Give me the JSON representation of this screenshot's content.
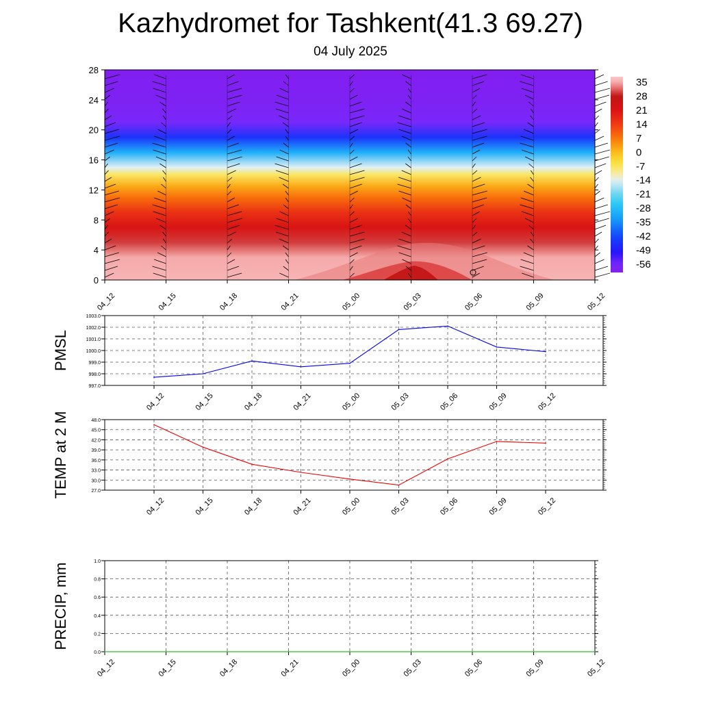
{
  "title": "Kazhydromet for Tashkent(41.3 69.27)",
  "subtitle": "04 July 2025",
  "chart_data": [
    {
      "type": "heatmap",
      "name": "upper-air temperature cross-section",
      "x_ticks": [
        "04_12",
        "04_15",
        "04_18",
        "04_21",
        "05_00",
        "05_03",
        "05_06",
        "05_09",
        "05_12"
      ],
      "y_ticks": [
        0,
        4,
        8,
        12,
        16,
        20,
        24,
        28
      ],
      "ylim": [
        0,
        28
      ],
      "colorbar": {
        "labels": [
          "35",
          "28",
          "21",
          "14",
          "7",
          "0",
          "-7",
          "-14",
          "-21",
          "-28",
          "-35",
          "-42",
          "-49",
          "-56"
        ],
        "range": [
          -60,
          38
        ]
      },
      "temperature_profile": [
        {
          "level": 0,
          "value": 36
        },
        {
          "level": 3,
          "value": 35
        },
        {
          "level": 5,
          "value": 30
        },
        {
          "level": 7,
          "value": 22
        },
        {
          "level": 9,
          "value": 16
        },
        {
          "level": 11,
          "value": 8
        },
        {
          "level": 12.5,
          "value": 2
        },
        {
          "level": 14,
          "value": -7
        },
        {
          "level": 15,
          "value": -14
        },
        {
          "level": 17,
          "value": -30
        },
        {
          "level": 19,
          "value": -45
        },
        {
          "level": 21,
          "value": -56
        },
        {
          "level": 23,
          "value": -58
        },
        {
          "level": 28,
          "value": -60
        }
      ],
      "wind_barb_columns": [
        "04_12",
        "04_15",
        "04_18",
        "04_21",
        "05_00",
        "05_03",
        "05_06",
        "05_09",
        "05_12"
      ]
    },
    {
      "type": "line",
      "name": "PMSL",
      "ylabel": "PMSL",
      "categories": [
        "04_12",
        "04_15",
        "04_18",
        "04_21",
        "05_00",
        "05_03",
        "05_06",
        "05_09",
        "05_12"
      ],
      "values": [
        997.7,
        998.0,
        999.1,
        998.6,
        998.9,
        1001.8,
        1002.1,
        1000.3,
        999.9
      ],
      "ylim": [
        997.0,
        1003.0
      ],
      "yticks": [
        "997.0",
        "998.0",
        "999.0",
        "1000.0",
        "1001.0",
        "1002.0",
        "1003.0"
      ],
      "color": "#0000ee",
      "grid": true
    },
    {
      "type": "line",
      "name": "TEMP at 2 M",
      "ylabel": "TEMP at 2 M",
      "categories": [
        "04_12",
        "04_15",
        "04_18",
        "04_21",
        "05_00",
        "05_03",
        "05_06",
        "05_09",
        "05_12"
      ],
      "values": [
        46.5,
        39.8,
        34.7,
        32.3,
        30.3,
        28.5,
        36.3,
        41.5,
        41.0
      ],
      "ylim": [
        27.0,
        48.0
      ],
      "yticks": [
        "27.0",
        "30.0",
        "33.0",
        "36.0",
        "39.0",
        "42.0",
        "45.0",
        "48.0"
      ],
      "color": "#ee0000",
      "grid": true
    },
    {
      "type": "line",
      "name": "PRECIP, mm",
      "ylabel": "PRECIP, mm",
      "x_ticks": [
        "04_12",
        "04_15",
        "04_18",
        "04_21",
        "05_00",
        "05_03",
        "05_06",
        "05_09",
        "05_12"
      ],
      "values": [
        0,
        0,
        0,
        0,
        0,
        0,
        0,
        0,
        0
      ],
      "ylim": [
        0.0,
        1.0
      ],
      "yticks": [
        "0.0",
        "0.2",
        "0.4",
        "0.6",
        "0.8",
        "1.0"
      ],
      "color": "#00aa00",
      "grid": true
    }
  ]
}
